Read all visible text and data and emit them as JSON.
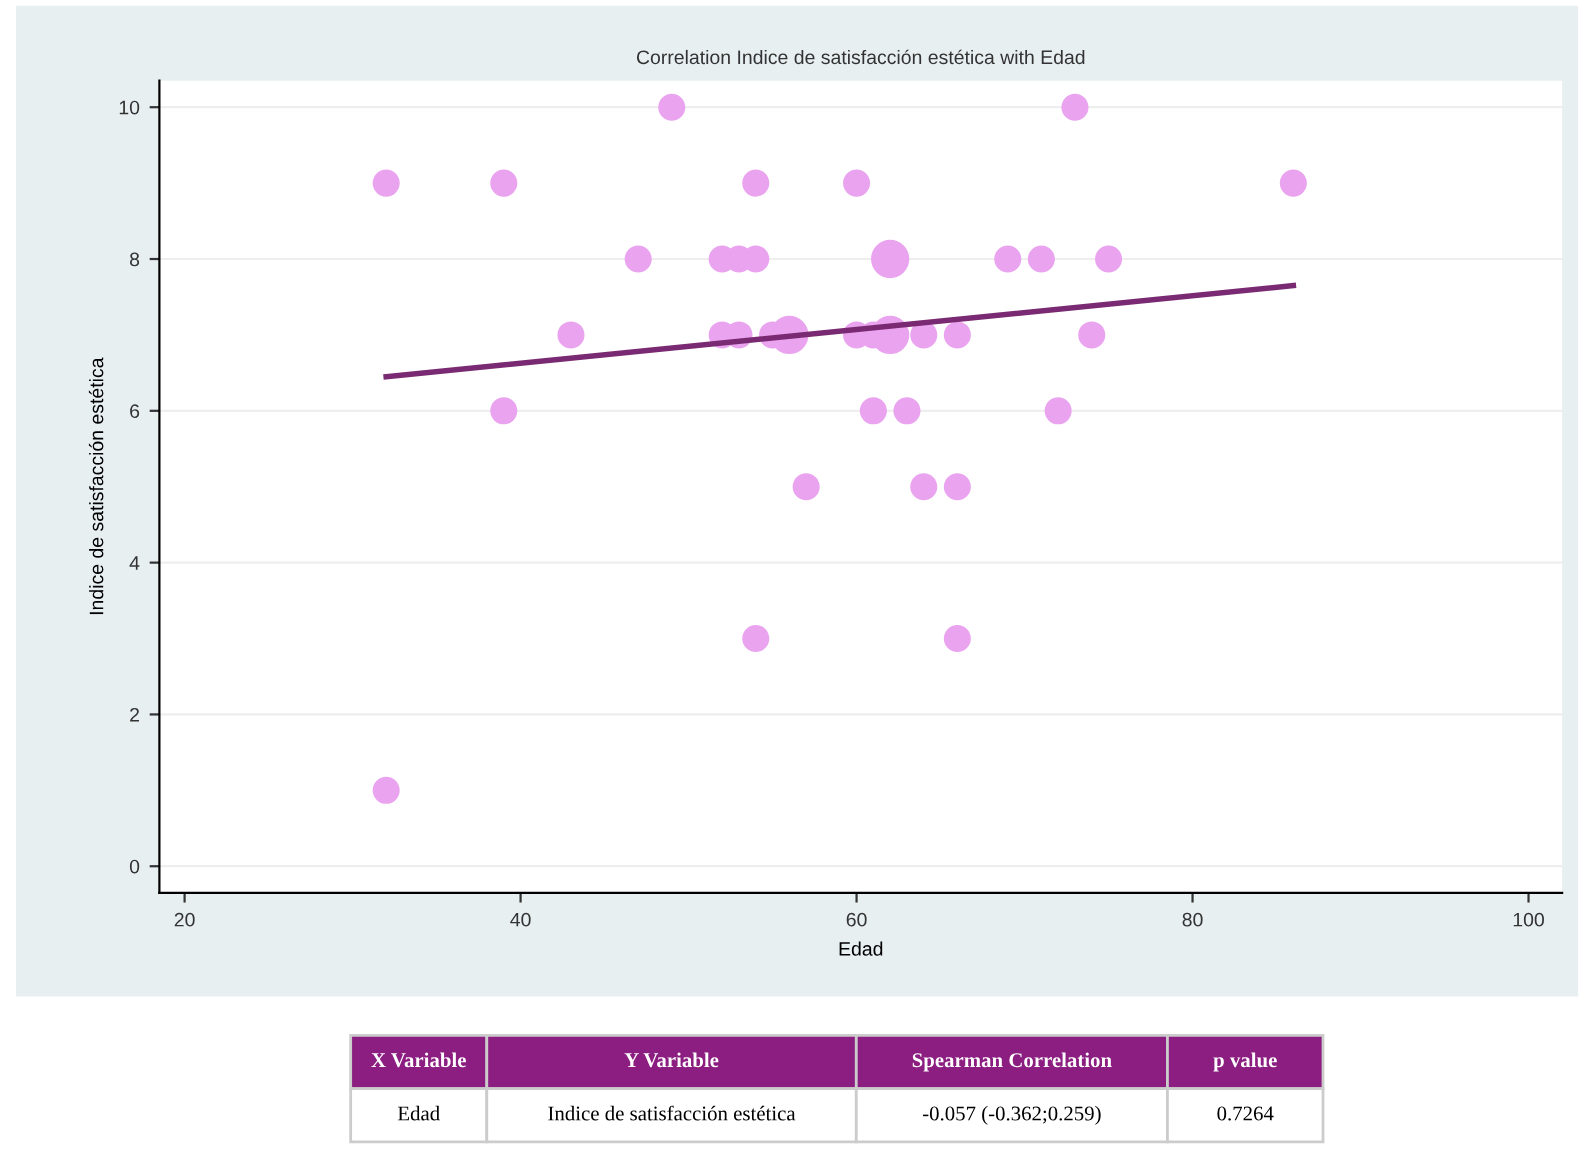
{
  "chart_data": {
    "type": "bubble",
    "title": "Correlation Indice de satisfacción estética with Edad",
    "xlabel": "Edad",
    "ylabel": "Indice de satisfacción estética",
    "xlim": [
      18.5,
      102
    ],
    "ylim": [
      -0.35,
      10.35
    ],
    "xticks": [
      20,
      40,
      60,
      80,
      100
    ],
    "yticks": [
      0,
      2,
      4,
      6,
      8,
      10
    ],
    "grid": "y",
    "series": [
      {
        "color": "#eaa4ef",
        "x": [
          32,
          39,
          49,
          54,
          60,
          73,
          86,
          47,
          52,
          53,
          54,
          62,
          69,
          71,
          75,
          43,
          52,
          53,
          55,
          56,
          60,
          61,
          62,
          64,
          66,
          74,
          39,
          61,
          63,
          72,
          57,
          64,
          66,
          54,
          66,
          32
        ],
        "values": [
          9,
          9,
          10,
          9,
          9,
          10,
          9,
          8,
          8,
          8,
          8,
          8,
          8,
          8,
          8,
          7,
          7,
          7,
          7,
          7,
          7,
          7,
          7,
          7,
          7,
          7,
          6,
          6,
          6,
          6,
          5,
          5,
          5,
          3,
          3,
          1
        ],
        "sizes": [
          0.5,
          0.5,
          0.5,
          0.5,
          0.5,
          0.5,
          0.5,
          0.5,
          0.5,
          0.5,
          0.5,
          1,
          0.5,
          0.5,
          0.5,
          0.5,
          0.5,
          0.5,
          0.5,
          1,
          0.5,
          0.5,
          1,
          0.5,
          0.5,
          0.5,
          0.5,
          0.5,
          0.5,
          0.5,
          0.5,
          0.5,
          0.5,
          0.5,
          0.5,
          0.5
        ]
      },
      {
        "type": "line",
        "color": "#7a2a72",
        "x": [
          32,
          86
        ],
        "values": [
          6.45,
          7.65
        ]
      }
    ],
    "annotations": [
      "X Variable",
      "Y Variable",
      "Spearman Correlation",
      "p value",
      "Edad",
      "Indice de satisfacción estética",
      "-0.057 (-0.362;0.259)",
      "0.7264"
    ]
  }
}
